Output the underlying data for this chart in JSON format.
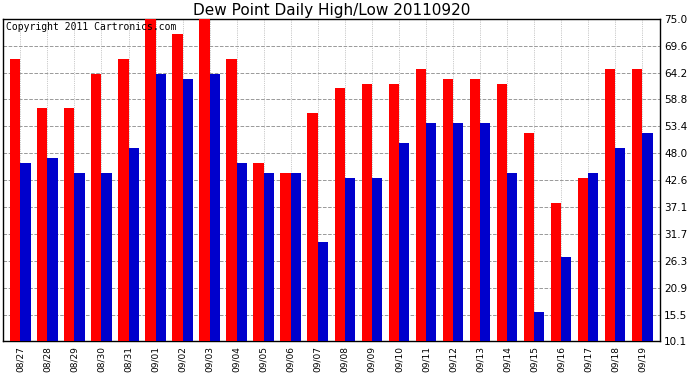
{
  "title": "Dew Point Daily High/Low 20110920",
  "copyright_text": "Copyright 2011 Cartronics.com",
  "dates": [
    "08/27",
    "08/28",
    "08/29",
    "08/30",
    "08/31",
    "09/01",
    "09/02",
    "09/03",
    "09/04",
    "09/05",
    "09/06",
    "09/07",
    "09/08",
    "09/09",
    "09/10",
    "09/11",
    "09/12",
    "09/13",
    "09/14",
    "09/15",
    "09/16",
    "09/17",
    "09/18",
    "09/19"
  ],
  "highs": [
    67.0,
    57.0,
    57.0,
    64.0,
    67.0,
    75.0,
    72.0,
    75.0,
    67.0,
    46.0,
    44.0,
    56.0,
    61.0,
    62.0,
    62.0,
    65.0,
    63.0,
    63.0,
    62.0,
    52.0,
    38.0,
    43.0,
    65.0,
    65.0
  ],
  "lows": [
    46.0,
    47.0,
    44.0,
    44.0,
    49.0,
    64.0,
    63.0,
    64.0,
    46.0,
    44.0,
    44.0,
    30.0,
    43.0,
    43.0,
    50.0,
    54.0,
    54.0,
    54.0,
    44.0,
    16.0,
    27.0,
    44.0,
    49.0,
    52.0
  ],
  "ylim_min": 10.1,
  "ylim_max": 75.0,
  "yticks": [
    10.1,
    15.5,
    20.9,
    26.3,
    31.7,
    37.1,
    42.6,
    48.0,
    53.4,
    58.8,
    64.2,
    69.6,
    75.0
  ],
  "bar_color_high": "#ff0000",
  "bar_color_low": "#0000cc",
  "background_color": "#ffffff",
  "plot_bg_color": "#ffffff",
  "grid_color": "#999999",
  "title_fontsize": 11,
  "copyright_fontsize": 7
}
